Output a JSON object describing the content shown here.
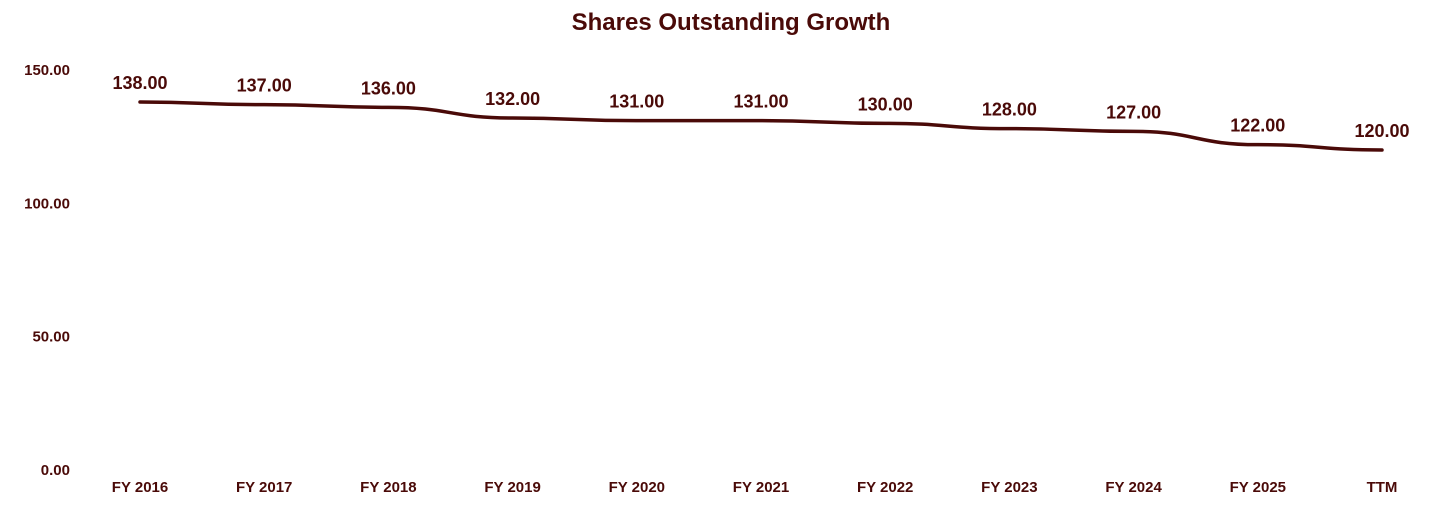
{
  "chart_data": {
    "type": "line",
    "title": "Shares Outstanding Growth",
    "xlabel": "",
    "ylabel": "",
    "categories": [
      "FY 2016",
      "FY 2017",
      "FY 2018",
      "FY 2019",
      "FY 2020",
      "FY 2021",
      "FY 2022",
      "FY 2023",
      "FY 2024",
      "FY 2025",
      "TTM"
    ],
    "values": [
      138,
      137,
      136,
      132,
      131,
      131,
      130,
      128,
      127,
      122,
      120
    ],
    "data_labels": [
      "138.00",
      "137.00",
      "136.00",
      "132.00",
      "131.00",
      "131.00",
      "130.00",
      "128.00",
      "127.00",
      "122.00",
      "120.00"
    ],
    "ylim": [
      0,
      150
    ],
    "yticks": [
      0,
      50,
      100,
      150
    ],
    "ytick_labels": [
      "0.00",
      "50.00",
      "100.00",
      "150.00"
    ],
    "grid": false,
    "legend": "none",
    "colors": {
      "line": "#4a0a08",
      "text": "#4a0a08"
    }
  }
}
